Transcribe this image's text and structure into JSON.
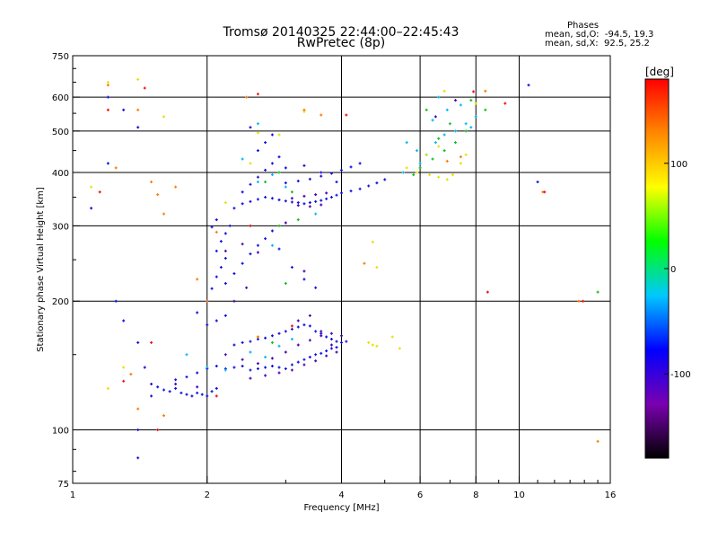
{
  "chart_data": {
    "type": "scatter",
    "title": "Tromsø 20140325 22:44:00–22:45:43",
    "subtitle": "RwPretec (8p)",
    "xlabel": "Frequency [MHz]",
    "ylabel": "Stationary phase Virtual Height [km]",
    "xscale": "log",
    "yscale": "log",
    "xlim": [
      1,
      16
    ],
    "ylim": [
      75,
      750
    ],
    "xticks": [
      1,
      2,
      4,
      6,
      8,
      10,
      16
    ],
    "yticks": [
      75,
      100,
      200,
      300,
      400,
      500,
      600,
      750
    ],
    "grid_x": [
      2,
      4,
      6,
      8,
      10
    ],
    "grid_y": [
      100,
      200,
      300,
      400,
      500,
      600
    ],
    "grid": true,
    "phases": {
      "title": "Phases",
      "o_line": "mean, sd,O:  -94.5, 19.3",
      "x_line": "mean, sd,X:  92.5, 25.2"
    },
    "colorbar": {
      "unit": "[deg]",
      "range": [
        -180,
        180
      ],
      "tick_values": [
        100,
        0,
        -100
      ],
      "tick_labels": [
        "100",
        "0",
        "-100"
      ],
      "colors": [
        "#000000",
        "#7a00b0",
        "#0000ff",
        "#00c8ff",
        "#00ff00",
        "#ffff00",
        "#ff8800",
        "#ff0000"
      ]
    },
    "series": [
      {
        "points": [
          [
            1.5,
            128
          ],
          [
            1.55,
            126
          ],
          [
            1.6,
            124
          ],
          [
            1.65,
            123
          ],
          [
            1.7,
            125
          ],
          [
            1.75,
            122
          ],
          [
            1.8,
            121
          ],
          [
            1.85,
            120
          ],
          [
            1.9,
            122
          ],
          [
            1.95,
            121
          ],
          [
            2.0,
            120
          ],
          [
            2.05,
            123
          ],
          [
            2.1,
            125
          ],
          [
            1.7,
            131
          ],
          [
            1.8,
            133
          ],
          [
            1.9,
            136
          ],
          [
            2.0,
            139
          ],
          [
            2.1,
            141
          ],
          [
            2.2,
            139
          ],
          [
            2.3,
            140
          ],
          [
            2.4,
            141
          ],
          [
            2.5,
            138
          ],
          [
            2.6,
            139
          ],
          [
            2.7,
            140
          ],
          [
            2.8,
            141
          ],
          [
            2.9,
            140
          ],
          [
            3.0,
            139
          ],
          [
            3.1,
            142
          ],
          [
            3.2,
            144
          ],
          [
            3.3,
            146
          ],
          [
            3.4,
            148
          ],
          [
            3.5,
            150
          ],
          [
            3.6,
            151
          ],
          [
            3.7,
            153
          ],
          [
            3.8,
            155
          ],
          [
            3.9,
            156
          ],
          [
            2.3,
            158
          ],
          [
            2.4,
            160
          ],
          [
            2.5,
            161
          ],
          [
            2.6,
            163
          ],
          [
            2.7,
            164
          ],
          [
            2.8,
            166
          ],
          [
            2.9,
            168
          ],
          [
            3.0,
            170
          ],
          [
            3.1,
            172
          ],
          [
            3.2,
            174
          ],
          [
            3.3,
            176
          ],
          [
            3.4,
            175
          ],
          [
            3.5,
            170
          ],
          [
            3.6,
            168
          ],
          [
            3.7,
            165
          ],
          [
            3.8,
            163
          ],
          [
            3.9,
            161
          ],
          [
            4.0,
            160
          ],
          [
            4.1,
            161
          ],
          [
            2.0,
            176
          ],
          [
            2.1,
            180
          ],
          [
            2.2,
            185
          ],
          [
            1.9,
            188
          ],
          [
            2.0,
            200
          ],
          [
            2.05,
            214
          ],
          [
            2.1,
            228
          ],
          [
            2.15,
            240
          ],
          [
            2.2,
            252
          ],
          [
            2.1,
            262
          ],
          [
            2.15,
            276
          ],
          [
            2.2,
            288
          ],
          [
            2.05,
            298
          ],
          [
            2.1,
            310
          ],
          [
            2.2,
            220
          ],
          [
            2.3,
            232
          ],
          [
            2.4,
            245
          ],
          [
            2.5,
            258
          ],
          [
            2.6,
            270
          ],
          [
            2.7,
            280
          ],
          [
            2.8,
            292
          ],
          [
            2.3,
            330
          ],
          [
            2.4,
            338
          ],
          [
            2.5,
            342
          ],
          [
            2.6,
            346
          ],
          [
            2.7,
            350
          ],
          [
            2.8,
            348
          ],
          [
            2.9,
            345
          ],
          [
            3.0,
            343
          ],
          [
            3.1,
            341
          ],
          [
            3.2,
            340
          ],
          [
            3.3,
            338
          ],
          [
            3.4,
            340
          ],
          [
            3.5,
            342
          ],
          [
            3.6,
            344
          ],
          [
            3.7,
            347
          ],
          [
            3.8,
            350
          ],
          [
            3.9,
            354
          ],
          [
            4.0,
            358
          ],
          [
            4.2,
            362
          ],
          [
            4.4,
            366
          ],
          [
            4.6,
            372
          ],
          [
            4.8,
            378
          ],
          [
            5.0,
            385
          ],
          [
            2.4,
            360
          ],
          [
            2.5,
            375
          ],
          [
            2.6,
            390
          ],
          [
            2.7,
            405
          ],
          [
            2.8,
            420
          ],
          [
            2.9,
            435
          ],
          [
            2.6,
            450
          ],
          [
            2.7,
            470
          ],
          [
            2.8,
            490
          ],
          [
            2.5,
            510
          ],
          [
            3.0,
            378
          ],
          [
            3.2,
            382
          ],
          [
            3.4,
            386
          ],
          [
            3.6,
            392
          ],
          [
            3.8,
            398
          ],
          [
            4.0,
            405
          ],
          [
            4.2,
            412
          ],
          [
            4.4,
            420
          ],
          [
            3.0,
            410
          ],
          [
            3.3,
            415
          ],
          [
            3.6,
            400
          ],
          [
            3.9,
            380
          ],
          [
            2.9,
            265
          ],
          [
            3.1,
            240
          ],
          [
            3.3,
            225
          ],
          [
            3.5,
            215
          ],
          [
            1.2,
            600
          ],
          [
            1.3,
            560
          ],
          [
            1.4,
            510
          ],
          [
            1.2,
            420
          ],
          [
            1.1,
            330
          ],
          [
            1.25,
            200
          ],
          [
            1.3,
            180
          ],
          [
            1.4,
            160
          ],
          [
            1.45,
            140
          ],
          [
            1.5,
            120
          ],
          [
            1.4,
            100
          ],
          [
            1.4,
            86
          ],
          [
            10.5,
            640
          ],
          [
            11.0,
            380
          ],
          [
            2.25,
            300
          ]
        ],
        "color": "#1010e0"
      },
      {
        "points": [
          [
            2.2,
            150
          ],
          [
            2.4,
            146
          ],
          [
            2.6,
            143
          ],
          [
            2.8,
            147
          ],
          [
            3.0,
            152
          ],
          [
            3.2,
            158
          ],
          [
            3.4,
            162
          ],
          [
            3.6,
            166
          ],
          [
            3.8,
            168
          ],
          [
            4.0,
            166
          ],
          [
            2.5,
            132
          ],
          [
            2.7,
            134
          ],
          [
            2.9,
            136
          ],
          [
            3.1,
            138
          ],
          [
            3.3,
            142
          ],
          [
            3.5,
            145
          ],
          [
            3.7,
            149
          ],
          [
            3.9,
            152
          ],
          [
            2.3,
            200
          ],
          [
            2.45,
            215
          ],
          [
            3.2,
            335
          ],
          [
            3.4,
            333
          ],
          [
            3.6,
            336
          ],
          [
            3.1,
            348
          ],
          [
            3.3,
            352
          ],
          [
            3.5,
            355
          ],
          [
            3.7,
            358
          ],
          [
            2.2,
            262
          ],
          [
            2.4,
            272
          ],
          [
            3.2,
            180
          ],
          [
            3.4,
            185
          ],
          [
            3.6,
            170
          ],
          [
            3.8,
            158
          ],
          [
            1.7,
            128
          ],
          [
            1.9,
            126
          ],
          [
            3.0,
            305
          ],
          [
            3.3,
            235
          ],
          [
            2.6,
            260
          ],
          [
            6.5,
            540
          ],
          [
            7.2,
            590
          ]
        ],
        "color": "#4a00b0"
      },
      {
        "points": [
          [
            2.0,
            140
          ],
          [
            2.2,
            138
          ],
          [
            2.5,
            152
          ],
          [
            2.7,
            148
          ],
          [
            2.9,
            157
          ],
          [
            3.1,
            163
          ],
          [
            2.6,
            380
          ],
          [
            2.8,
            395
          ],
          [
            3.0,
            370
          ],
          [
            2.5,
            300
          ],
          [
            2.8,
            270
          ],
          [
            5.6,
            470
          ],
          [
            5.9,
            450
          ],
          [
            6.2,
            440
          ],
          [
            6.5,
            470
          ],
          [
            6.8,
            490
          ],
          [
            7.2,
            500
          ],
          [
            7.6,
            520
          ],
          [
            8.0,
            540
          ],
          [
            6.0,
            420
          ],
          [
            6.4,
            530
          ],
          [
            6.9,
            560
          ],
          [
            7.4,
            575
          ],
          [
            7.8,
            510
          ],
          [
            5.5,
            400
          ],
          [
            6.6,
            600
          ],
          [
            3.5,
            320
          ],
          [
            1.8,
            150
          ],
          [
            2.4,
            430
          ],
          [
            2.6,
            520
          ]
        ],
        "color": "#00b8f0"
      },
      {
        "points": [
          [
            2.7,
            380
          ],
          [
            2.9,
            400
          ],
          [
            3.1,
            360
          ],
          [
            2.9,
            300
          ],
          [
            3.2,
            310
          ],
          [
            6.0,
            410
          ],
          [
            6.4,
            430
          ],
          [
            6.8,
            450
          ],
          [
            7.2,
            470
          ],
          [
            7.6,
            500
          ],
          [
            2.6,
            165
          ],
          [
            2.8,
            160
          ],
          [
            6.2,
            560
          ],
          [
            7.0,
            520
          ],
          [
            8.4,
            560
          ],
          [
            15.0,
            210
          ],
          [
            3.0,
            220
          ],
          [
            5.8,
            395
          ],
          [
            6.6,
            480
          ],
          [
            7.8,
            590
          ]
        ],
        "color": "#10c020"
      },
      {
        "points": [
          [
            5.6,
            410
          ],
          [
            5.9,
            400
          ],
          [
            6.3,
            395
          ],
          [
            6.6,
            390
          ],
          [
            6.9,
            385
          ],
          [
            7.1,
            395
          ],
          [
            7.4,
            420
          ],
          [
            7.6,
            440
          ],
          [
            6.2,
            440
          ],
          [
            6.6,
            460
          ],
          [
            4.6,
            160
          ],
          [
            4.7,
            158
          ],
          [
            4.8,
            157
          ],
          [
            5.2,
            165
          ],
          [
            5.4,
            155
          ],
          [
            2.5,
            420
          ],
          [
            2.6,
            495
          ],
          [
            1.2,
            650
          ],
          [
            1.4,
            660
          ],
          [
            1.3,
            140
          ],
          [
            4.8,
            240
          ],
          [
            6.8,
            620
          ],
          [
            8.0,
            580
          ],
          [
            3.3,
            555
          ],
          [
            2.2,
            340
          ],
          [
            1.6,
            540
          ],
          [
            4.7,
            275
          ],
          [
            2.9,
            490
          ],
          [
            1.1,
            370
          ],
          [
            1.2,
            125
          ]
        ],
        "color": "#e8e000"
      },
      {
        "points": [
          [
            1.2,
            640
          ],
          [
            1.4,
            560
          ],
          [
            1.5,
            380
          ],
          [
            1.55,
            355
          ],
          [
            1.25,
            410
          ],
          [
            1.35,
            135
          ],
          [
            1.4,
            112
          ],
          [
            1.6,
            108
          ],
          [
            1.6,
            320
          ],
          [
            2.1,
            290
          ],
          [
            2.45,
            600
          ],
          [
            2.6,
            165
          ],
          [
            4.5,
            245
          ],
          [
            6.9,
            425
          ],
          [
            7.4,
            435
          ],
          [
            8.4,
            620
          ],
          [
            11.3,
            360
          ],
          [
            13.6,
            200
          ],
          [
            15.0,
            94
          ],
          [
            2.0,
            200
          ],
          [
            1.9,
            225
          ],
          [
            3.3,
            560
          ],
          [
            3.6,
            545
          ],
          [
            1.7,
            370
          ]
        ],
        "color": "#ff7a00"
      },
      {
        "points": [
          [
            1.5,
            160
          ],
          [
            1.3,
            130
          ],
          [
            1.15,
            360
          ],
          [
            1.2,
            560
          ],
          [
            1.45,
            630
          ],
          [
            2.1,
            120
          ],
          [
            2.5,
            300
          ],
          [
            3.1,
            175
          ],
          [
            7.9,
            618
          ],
          [
            8.5,
            210
          ],
          [
            11.4,
            360
          ],
          [
            13.9,
            200
          ],
          [
            2.6,
            610
          ],
          [
            9.3,
            580
          ],
          [
            1.55,
            100
          ],
          [
            4.1,
            545
          ]
        ],
        "color": "#f01010"
      }
    ]
  }
}
